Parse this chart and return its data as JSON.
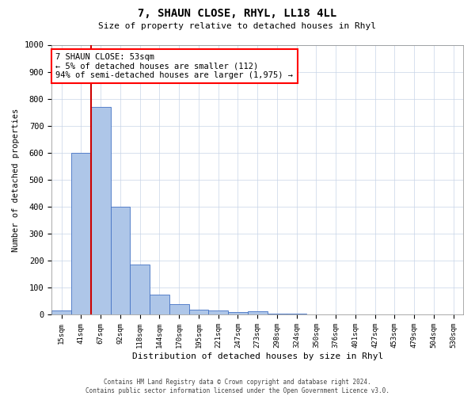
{
  "title": "7, SHAUN CLOSE, RHYL, LL18 4LL",
  "subtitle": "Size of property relative to detached houses in Rhyl",
  "xlabel": "Distribution of detached houses by size in Rhyl",
  "ylabel": "Number of detached properties",
  "bar_labels": [
    "15sqm",
    "41sqm",
    "67sqm",
    "92sqm",
    "118sqm",
    "144sqm",
    "170sqm",
    "195sqm",
    "221sqm",
    "247sqm",
    "273sqm",
    "298sqm",
    "324sqm",
    "350sqm",
    "376sqm",
    "401sqm",
    "427sqm",
    "453sqm",
    "479sqm",
    "504sqm",
    "530sqm"
  ],
  "bar_values": [
    15,
    600,
    770,
    400,
    185,
    75,
    40,
    18,
    15,
    10,
    12,
    5,
    3,
    2,
    1,
    1,
    1,
    0,
    0,
    0,
    0
  ],
  "bar_color": "#aec6e8",
  "bar_edge_color": "#4472c4",
  "marker_color": "#cc0000",
  "ylim": [
    0,
    1000
  ],
  "yticks": [
    0,
    100,
    200,
    300,
    400,
    500,
    600,
    700,
    800,
    900,
    1000
  ],
  "annotation_text": "7 SHAUN CLOSE: 53sqm\n← 5% of detached houses are smaller (112)\n94% of semi-detached houses are larger (1,975) →",
  "footer1": "Contains HM Land Registry data © Crown copyright and database right 2024.",
  "footer2": "Contains public sector information licensed under the Open Government Licence v3.0.",
  "bg_color": "#ffffff",
  "grid_color": "#c8d4e8"
}
